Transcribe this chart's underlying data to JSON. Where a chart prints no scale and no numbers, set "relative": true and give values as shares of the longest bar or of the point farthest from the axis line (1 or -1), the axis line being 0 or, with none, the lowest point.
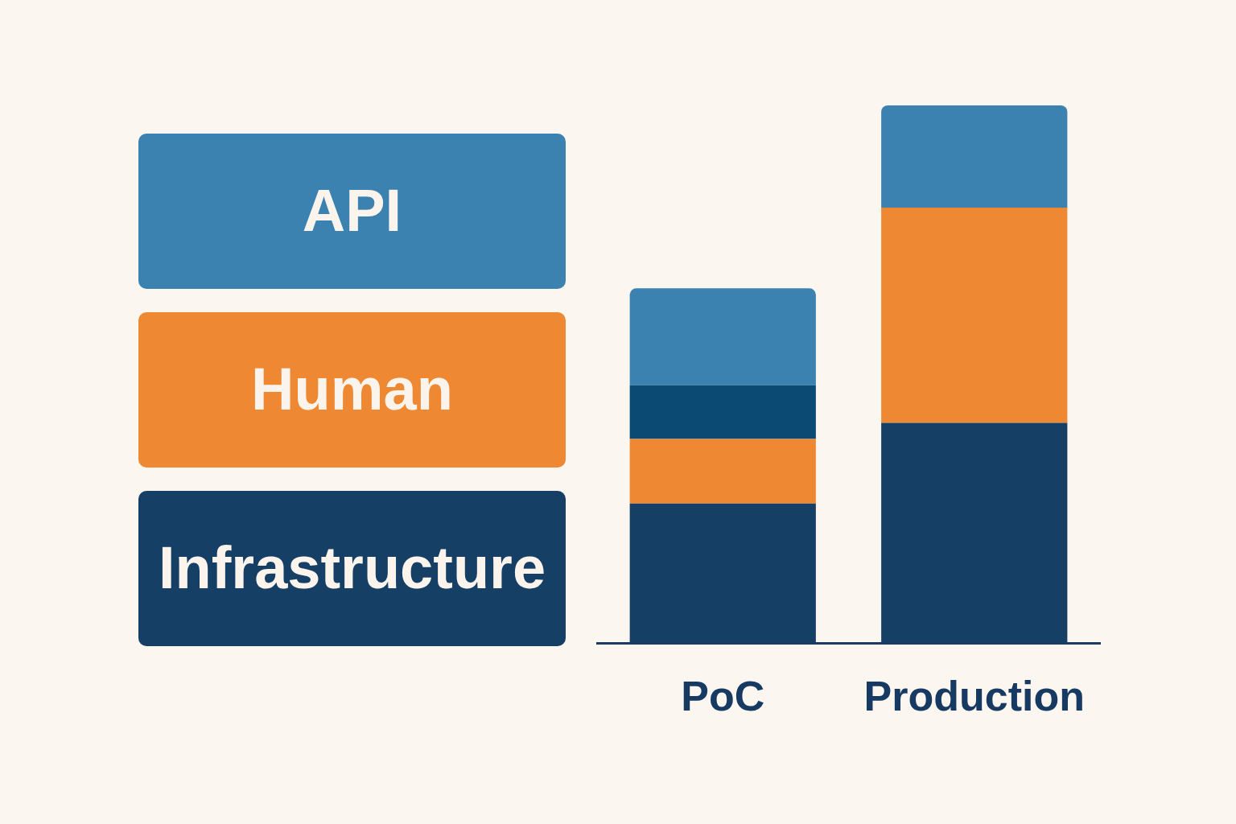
{
  "chart_data": {
    "type": "bar",
    "stacked": true,
    "relative": true,
    "legend": "left",
    "categories": [
      "PoC",
      "Production"
    ],
    "series": [
      {
        "name": "Infrastructure",
        "color": "#163f66",
        "values": [
          0.26,
          0.41
        ]
      },
      {
        "name": "Human",
        "color": "#ee8833",
        "values": [
          0.12,
          0.4
        ]
      },
      {
        "color": "#0b4a72",
        "values": [
          0.1,
          null
        ]
      },
      {
        "name": "API",
        "color": "#3b82b0",
        "values": [
          0.18,
          0.19
        ]
      }
    ]
  }
}
